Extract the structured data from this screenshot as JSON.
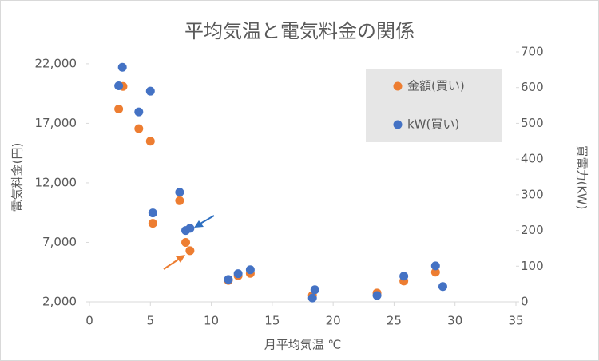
{
  "chart_data": {
    "type": "scatter",
    "title": "平均気温と電気料金の関係",
    "x_label": "月平均気温 ℃",
    "y_label": "電気料金(円)",
    "y2_label": "買電力(KW)",
    "xlim": [
      0,
      35
    ],
    "xticks": [
      0,
      5,
      10,
      15,
      20,
      25,
      30,
      35
    ],
    "ylim": [
      2000,
      23000
    ],
    "yticks": [
      {
        "value": 2000,
        "label": "2,000"
      },
      {
        "value": 7000,
        "label": "7,000"
      },
      {
        "value": 12000,
        "label": "12,000"
      },
      {
        "value": 17000,
        "label": "17,000"
      },
      {
        "value": 22000,
        "label": "22,000"
      }
    ],
    "y2lim": [
      0,
      700
    ],
    "y2ticks": [
      0,
      100,
      200,
      300,
      400,
      500,
      600,
      700
    ],
    "legend": "top-right",
    "grid": false,
    "series": [
      {
        "name": "金額(買い)",
        "color": "#ed7d31",
        "x": [
          2.4,
          2.75,
          4.05,
          5.0,
          5.2,
          7.4,
          7.9,
          8.25,
          11.4,
          12.2,
          13.2,
          18.3,
          23.6,
          25.8,
          28.4
        ],
        "values": [
          18200,
          20100,
          16550,
          15500,
          8600,
          10500,
          7000,
          6300,
          3800,
          4200,
          4400,
          2550,
          2750,
          3750,
          4500
        ]
      },
      {
        "name": "kW(買い)",
        "color": "#4472c4",
        "axis": "y2",
        "x": [
          2.4,
          2.7,
          4.05,
          5.0,
          5.2,
          7.4,
          7.9,
          8.25,
          11.4,
          12.2,
          13.2,
          18.3,
          18.5,
          23.6,
          25.8,
          28.4,
          29.0
        ],
        "values": [
          605,
          657,
          532,
          590,
          249,
          307,
          200,
          206,
          63,
          79,
          90,
          11,
          34,
          18,
          72,
          101,
          43
        ]
      }
    ]
  }
}
